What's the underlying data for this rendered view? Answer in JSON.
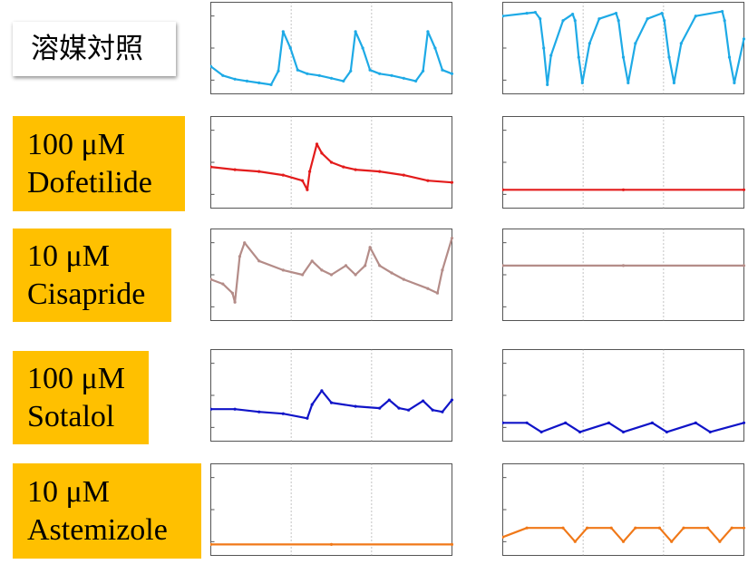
{
  "colors": {
    "control": "#1EAAE6",
    "dofetilide": "#E31B1B",
    "cisapride": "#B48C88",
    "sotalol": "#1014C8",
    "astemizole": "#F07818",
    "label_bg": "#FFC000"
  },
  "rows": [
    {
      "id": "control",
      "label_lines": [
        "溶媒対照"
      ]
    },
    {
      "id": "dofetilide",
      "label_lines": [
        "100 μM",
        "Dofetilide"
      ]
    },
    {
      "id": "cisapride",
      "label_lines": [
        "10 μM",
        "Cisapride"
      ]
    },
    {
      "id": "sotalol",
      "label_lines": [
        "100 μM",
        "Sotalol"
      ]
    },
    {
      "id": "astemizole",
      "label_lines": [
        "10 μM",
        "Astemizole"
      ]
    }
  ],
  "chart_data": [
    {
      "type": "line",
      "name": "control-left",
      "x": [
        0,
        0.05,
        0.1,
        0.15,
        0.2,
        0.25,
        0.28,
        0.3,
        0.33,
        0.36,
        0.4,
        0.45,
        0.5,
        0.55,
        0.58,
        0.6,
        0.63,
        0.66,
        0.7,
        0.75,
        0.8,
        0.85,
        0.88,
        0.9,
        0.93,
        0.96,
        1.0
      ],
      "values": [
        0.3,
        0.2,
        0.16,
        0.14,
        0.12,
        0.1,
        0.25,
        0.68,
        0.5,
        0.26,
        0.22,
        0.2,
        0.17,
        0.14,
        0.25,
        0.68,
        0.5,
        0.26,
        0.22,
        0.2,
        0.17,
        0.14,
        0.25,
        0.68,
        0.5,
        0.26,
        0.22
      ]
    },
    {
      "type": "line",
      "name": "control-right",
      "x": [
        0,
        0.1,
        0.135,
        0.155,
        0.17,
        0.185,
        0.2,
        0.25,
        0.29,
        0.3,
        0.315,
        0.33,
        0.36,
        0.4,
        0.47,
        0.48,
        0.5,
        0.52,
        0.55,
        0.6,
        0.66,
        0.67,
        0.69,
        0.71,
        0.74,
        0.8,
        0.91,
        0.92,
        0.94,
        0.96,
        1.0
      ],
      "values": [
        0.85,
        0.88,
        0.89,
        0.82,
        0.5,
        0.1,
        0.42,
        0.8,
        0.87,
        0.8,
        0.4,
        0.12,
        0.55,
        0.82,
        0.88,
        0.8,
        0.4,
        0.12,
        0.55,
        0.82,
        0.88,
        0.8,
        0.4,
        0.12,
        0.55,
        0.85,
        0.9,
        0.8,
        0.4,
        0.12,
        0.6
      ]
    },
    {
      "type": "line",
      "name": "dofetilide-left",
      "x": [
        0,
        0.1,
        0.2,
        0.3,
        0.38,
        0.4,
        0.41,
        0.44,
        0.46,
        0.5,
        0.55,
        0.6,
        0.7,
        0.8,
        0.9,
        1.0
      ],
      "values": [
        0.45,
        0.42,
        0.4,
        0.36,
        0.3,
        0.2,
        0.4,
        0.7,
        0.6,
        0.5,
        0.45,
        0.42,
        0.4,
        0.36,
        0.3,
        0.28
      ]
    },
    {
      "type": "line",
      "name": "dofetilide-right",
      "x": [
        0,
        0.5,
        1.0
      ],
      "values": [
        0.2,
        0.2,
        0.2
      ]
    },
    {
      "type": "line",
      "name": "cisapride-left",
      "x": [
        0,
        0.05,
        0.09,
        0.1,
        0.12,
        0.14,
        0.2,
        0.3,
        0.38,
        0.42,
        0.46,
        0.5,
        0.56,
        0.6,
        0.64,
        0.66,
        0.7,
        0.75,
        0.8,
        0.9,
        0.94,
        0.96,
        1.0
      ],
      "values": [
        0.45,
        0.4,
        0.3,
        0.2,
        0.7,
        0.85,
        0.65,
        0.55,
        0.5,
        0.65,
        0.55,
        0.5,
        0.6,
        0.5,
        0.6,
        0.8,
        0.6,
        0.52,
        0.45,
        0.35,
        0.3,
        0.55,
        0.9
      ]
    },
    {
      "type": "line",
      "name": "cisapride-right",
      "x": [
        0,
        0.5,
        1.0
      ],
      "values": [
        0.6,
        0.6,
        0.6
      ]
    },
    {
      "type": "line",
      "name": "sotalol-left",
      "x": [
        0,
        0.1,
        0.2,
        0.3,
        0.4,
        0.42,
        0.46,
        0.5,
        0.6,
        0.7,
        0.74,
        0.78,
        0.82,
        0.88,
        0.92,
        0.96,
        1.0
      ],
      "values": [
        0.35,
        0.35,
        0.32,
        0.3,
        0.25,
        0.4,
        0.55,
        0.42,
        0.38,
        0.36,
        0.45,
        0.36,
        0.34,
        0.44,
        0.34,
        0.32,
        0.45
      ]
    },
    {
      "type": "line",
      "name": "sotalol-right",
      "x": [
        0,
        0.1,
        0.16,
        0.26,
        0.32,
        0.44,
        0.5,
        0.62,
        0.68,
        0.8,
        0.86,
        1.0
      ],
      "values": [
        0.2,
        0.2,
        0.1,
        0.2,
        0.1,
        0.2,
        0.1,
        0.2,
        0.1,
        0.2,
        0.1,
        0.2
      ]
    },
    {
      "type": "line",
      "name": "astemizole-left",
      "x": [
        0,
        0.5,
        1.0
      ],
      "values": [
        0.12,
        0.12,
        0.12
      ]
    },
    {
      "type": "line",
      "name": "astemizole-right",
      "x": [
        0,
        0.1,
        0.25,
        0.3,
        0.35,
        0.45,
        0.5,
        0.55,
        0.65,
        0.7,
        0.75,
        0.85,
        0.9,
        0.95,
        1.0
      ],
      "values": [
        0.2,
        0.3,
        0.3,
        0.15,
        0.3,
        0.3,
        0.15,
        0.3,
        0.3,
        0.15,
        0.3,
        0.3,
        0.15,
        0.3,
        0.3
      ]
    }
  ]
}
